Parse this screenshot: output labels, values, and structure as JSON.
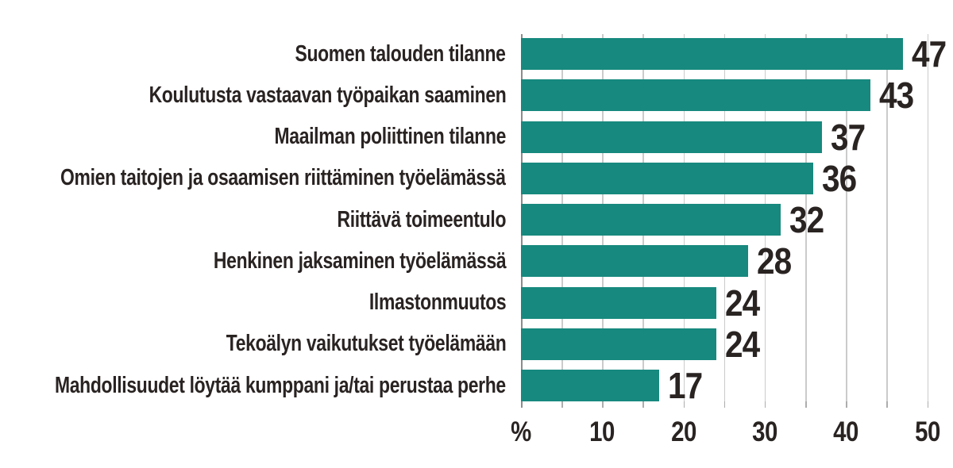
{
  "chart_data": {
    "type": "bar",
    "orientation": "horizontal",
    "title": "",
    "categories": [
      "Suomen talouden tilanne",
      "Koulutusta vastaavan työpaikan saaminen",
      "Maailman poliittinen tilanne",
      "Omien taitojen ja osaamisen riittäminen työelämässä",
      "Riittävä toimeentulo",
      "Henkinen jaksaminen työelämässä",
      "Ilmastonmuutos",
      "Tekoälyn vaikutukset työelämään",
      "Mahdollisuudet löytää kumppani ja/tai perustaa perhe"
    ],
    "values": [
      47,
      43,
      37,
      36,
      32,
      28,
      24,
      24,
      17
    ],
    "value_labels": [
      "47",
      "43",
      "37",
      "36",
      "32",
      "28",
      "24",
      "24",
      "17"
    ],
    "xlabel": "%",
    "xlim": [
      0,
      50
    ],
    "grid_step": 5,
    "xtick_values": [
      0,
      10,
      20,
      30,
      40,
      50
    ],
    "xtick_labels": [
      "%",
      "10",
      "20",
      "30",
      "40",
      "50"
    ],
    "legend": "none",
    "grid": "vertical-gridlines-every-5"
  },
  "colors": {
    "bar": "#17897E",
    "grid": "#CBCBCB",
    "axis_zero_line": "#8C8C8C",
    "tick": "#ADADAD",
    "text": "#292322",
    "background": "#FFFFFF"
  }
}
